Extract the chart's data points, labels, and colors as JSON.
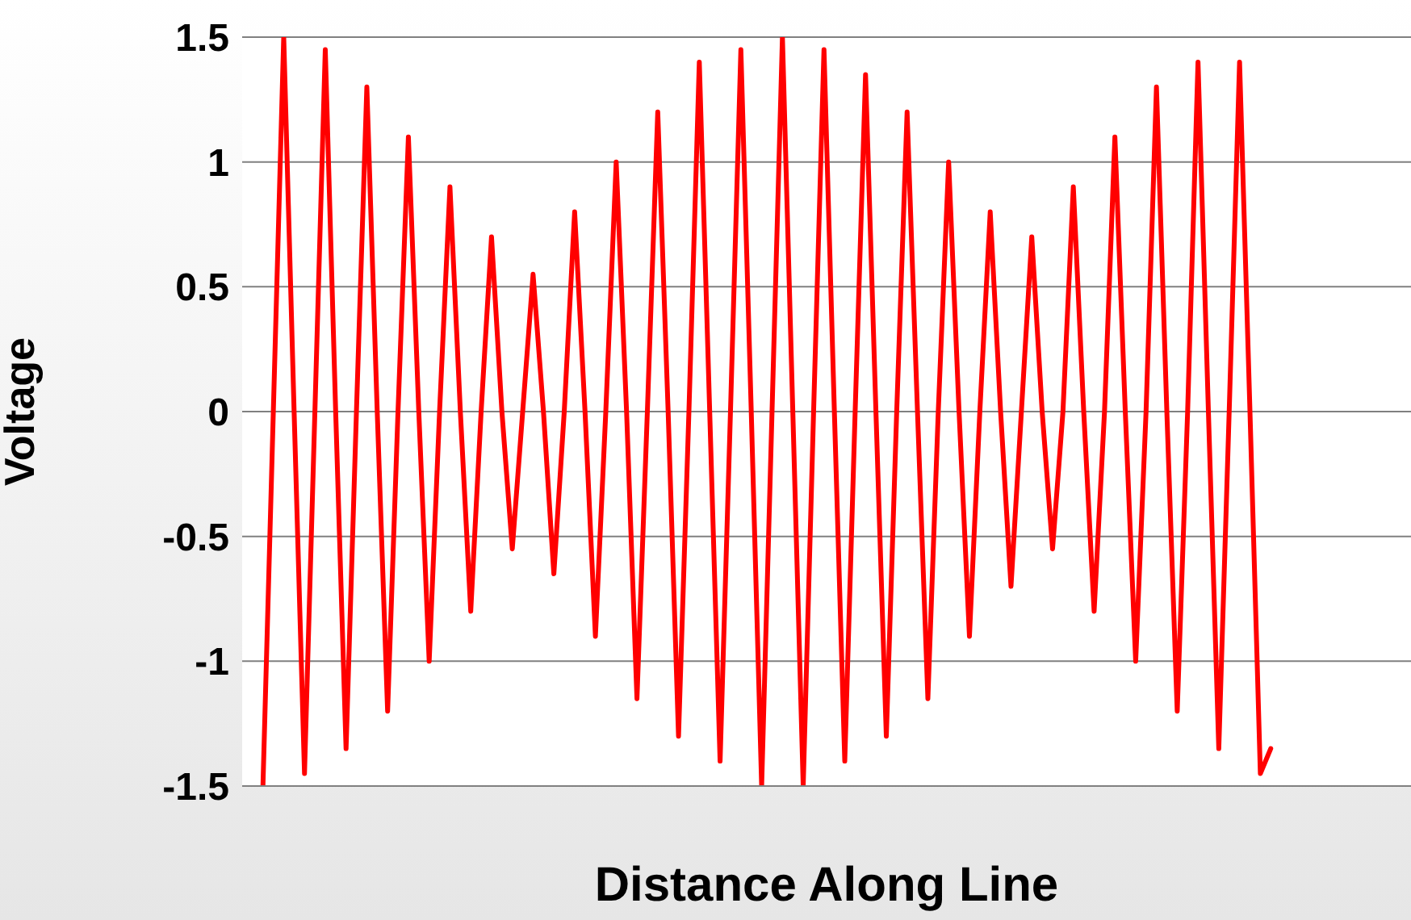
{
  "chart_data": {
    "type": "line",
    "xlabel": "Distance Along Line",
    "ylabel": "Voltage",
    "categories": [
      null,
      null,
      null,
      null,
      null,
      null,
      null,
      null,
      null,
      null,
      null,
      null,
      null,
      null,
      null,
      null,
      null,
      null,
      null,
      null,
      null,
      null,
      null,
      null,
      null,
      null,
      null,
      null,
      null,
      null,
      null,
      null,
      null,
      null,
      null,
      null,
      null,
      null,
      null,
      null,
      null,
      null,
      null,
      null,
      null,
      null,
      null,
      null,
      null,
      null,
      null,
      null,
      null,
      null,
      null,
      null,
      null,
      null,
      null,
      null,
      null,
      null,
      null,
      null,
      null,
      null,
      null,
      null,
      null,
      null,
      null,
      null,
      null,
      null,
      null,
      null,
      null,
      null,
      null,
      null,
      null,
      null,
      null,
      null,
      null,
      null,
      null,
      null,
      null,
      null,
      null,
      null,
      null,
      null,
      null,
      null,
      null,
      null
    ],
    "series": [
      {
        "color": "#ff0000",
        "values": [
          -1.5,
          0,
          1.5,
          0,
          -1.45,
          0,
          1.45,
          0,
          -1.35,
          0,
          1.3,
          0,
          -1.2,
          0,
          1.1,
          0,
          -1,
          0,
          0.9,
          0,
          -0.8,
          0,
          0.7,
          0,
          -0.55,
          0,
          0.55,
          0,
          -0.65,
          0,
          0.8,
          0,
          -0.9,
          0,
          1,
          0,
          -1.15,
          0,
          1.2,
          0,
          -1.3,
          0,
          1.4,
          0,
          -1.4,
          0,
          1.45,
          0,
          -1.5,
          0,
          1.5,
          0,
          -1.5,
          0,
          1.45,
          0,
          -1.4,
          0,
          1.35,
          0,
          -1.3,
          0,
          1.2,
          0,
          -1.15,
          0,
          1,
          0,
          -0.9,
          0,
          0.8,
          0,
          -0.7,
          0,
          0.7,
          0,
          -0.55,
          0,
          0.9,
          0,
          -0.8,
          0,
          1.1,
          0,
          -1,
          0,
          1.3,
          0,
          -1.2,
          0,
          1.4,
          0,
          -1.35,
          0,
          1.4,
          0,
          -1.45,
          -1.35
        ]
      }
    ],
    "ylim": [
      -1.5,
      1.5
    ],
    "yticks": [
      -1.5,
      -1,
      -0.5,
      0,
      0.5,
      1,
      1.5
    ],
    "grid": "y",
    "marker": "none",
    "line_style": "solid",
    "legend": false
  }
}
